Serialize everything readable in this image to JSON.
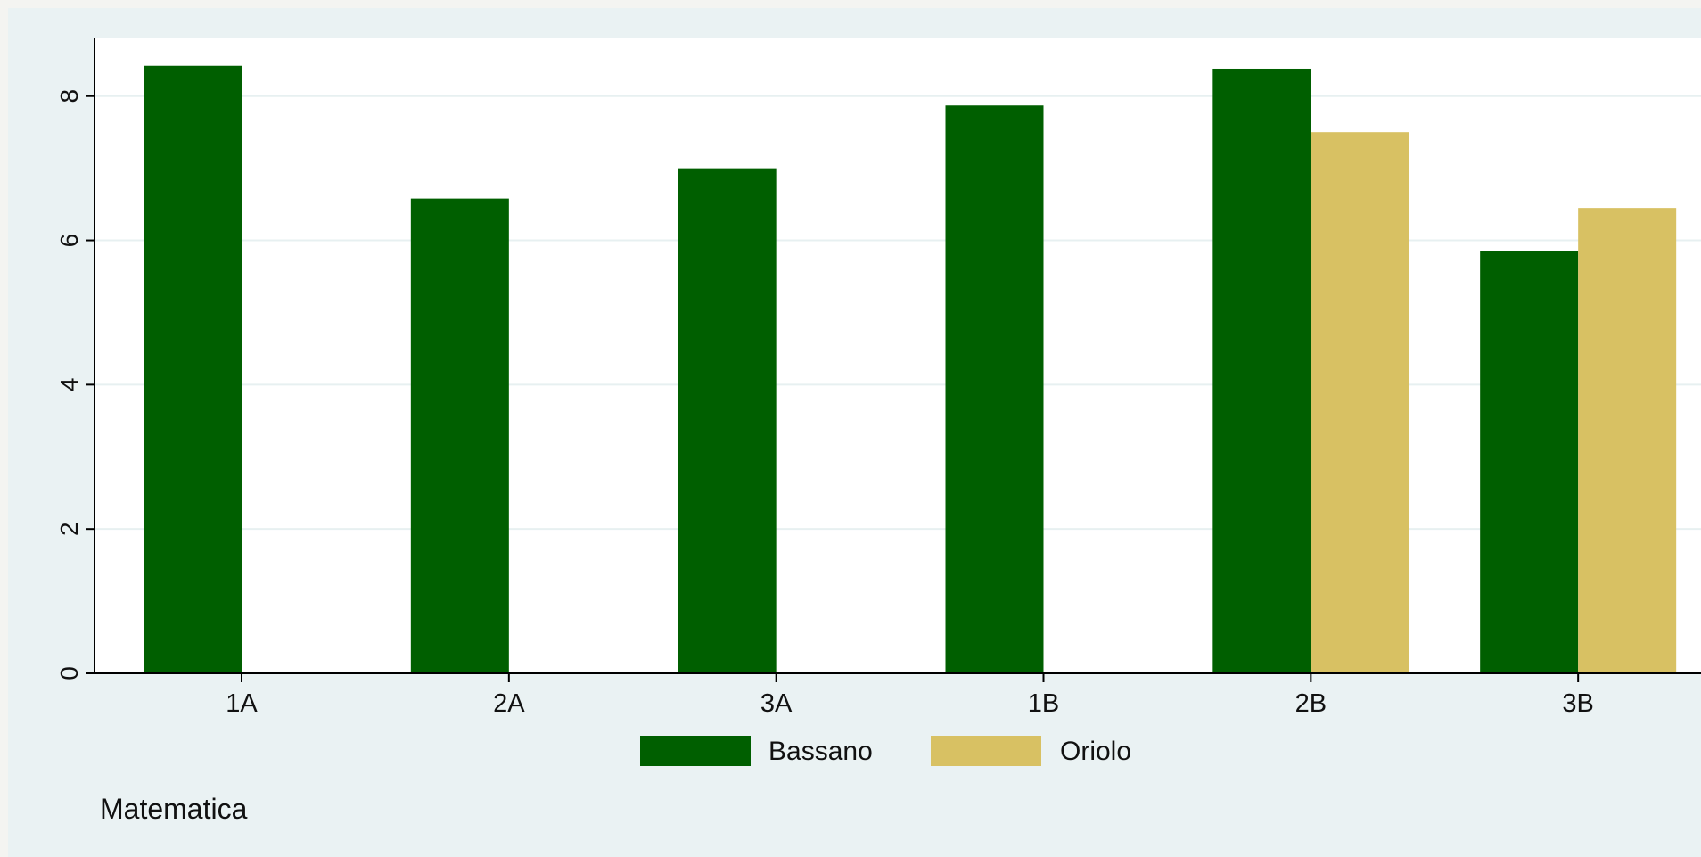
{
  "chart_data": {
    "type": "bar",
    "title": "",
    "xlabel": "",
    "ylabel": "",
    "categories": [
      "1A",
      "2A",
      "3A",
      "1B",
      "2B",
      "3B"
    ],
    "series": [
      {
        "name": "Bassano",
        "values": [
          8.42,
          6.58,
          7.0,
          7.87,
          8.38,
          5.85
        ],
        "color": "#005f00"
      },
      {
        "name": "Oriolo",
        "values": [
          null,
          null,
          null,
          null,
          7.5,
          6.45
        ],
        "color": "#d8c163"
      }
    ],
    "ylim": [
      0,
      8.8
    ],
    "yticks": [
      0,
      2,
      4,
      6,
      8
    ],
    "grid": true,
    "legend_position": "bottom-center",
    "note": "Matematica",
    "colors": {
      "plot_background": "#ffffff",
      "panel_background": "#eaf2f3",
      "gridline": "#e7f0f1",
      "axis": "#000000"
    }
  }
}
